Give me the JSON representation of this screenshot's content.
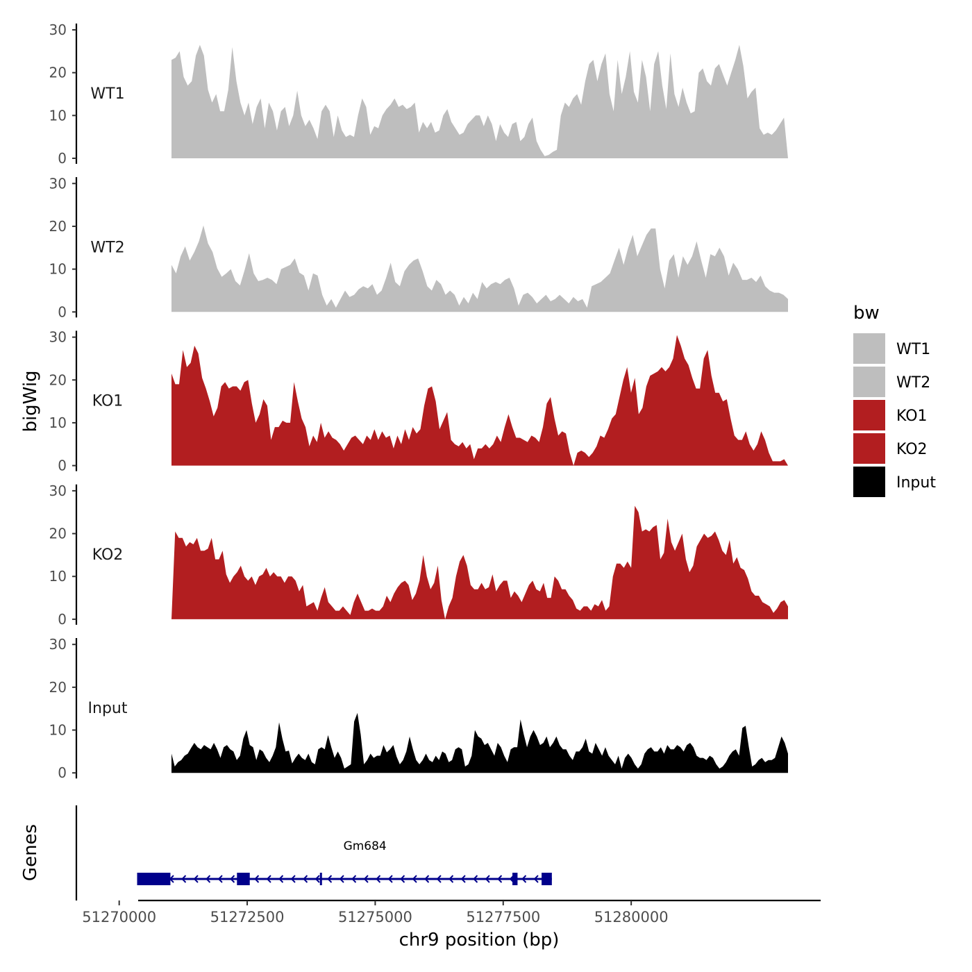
{
  "chart_data": {
    "type": "area",
    "ylabel": "bigWig",
    "gene_panel_label": "Genes",
    "xlabel": "chr9 position (bp)",
    "xlim": [
      51269150,
      51283700
    ],
    "ylim": [
      0,
      31
    ],
    "y_ticks": [
      0,
      10,
      20,
      30
    ],
    "x_ticks": [
      51270000,
      51272500,
      51275000,
      51277500,
      51280000
    ],
    "x_tick_labels": [
      "51270000",
      "51272500",
      "51275000",
      "51277500",
      "51280000"
    ],
    "legend": {
      "title": "bw",
      "position": "right",
      "entries": [
        {
          "name": "WT1",
          "color": "#bebebe"
        },
        {
          "name": "WT2",
          "color": "#bebebe"
        },
        {
          "name": "KO1",
          "color": "#b21e20"
        },
        {
          "name": "KO2",
          "color": "#b21e20"
        },
        {
          "name": "Input",
          "color": "#000000"
        }
      ]
    },
    "tracks": [
      {
        "name": "WT1",
        "color": "#bebebe",
        "values": [
          23,
          23.5,
          25,
          19,
          17,
          18,
          24,
          26.5,
          24,
          16,
          13,
          15,
          11,
          11,
          16,
          26,
          18,
          13,
          10,
          13,
          8,
          12,
          14,
          7,
          13,
          11,
          6.5,
          11,
          12,
          7.5,
          10,
          15.8,
          10,
          7.5,
          9,
          7,
          4.5,
          11,
          12.5,
          11,
          5,
          10,
          6.5,
          5,
          5.5,
          5,
          10,
          14,
          12,
          5.5,
          7.5,
          7,
          10,
          11.5,
          12.5,
          14,
          12,
          12.5,
          11.5,
          12,
          13,
          6,
          8.5,
          7,
          8.5,
          6,
          6.5,
          10,
          11.5,
          8.5,
          7,
          5.5,
          6,
          8,
          9,
          10,
          10,
          7.5,
          10,
          8,
          4,
          8,
          6,
          5,
          8,
          8.5,
          4,
          5,
          8,
          9.5,
          4,
          2,
          0.5,
          0.8,
          1.5,
          2,
          10,
          13,
          12,
          14,
          15,
          12.5,
          18,
          22,
          23,
          18,
          22,
          24.5,
          15,
          11,
          23,
          15,
          19,
          25,
          15.5,
          13,
          23,
          19,
          11,
          22,
          25,
          17,
          11.5,
          24.5,
          15,
          12,
          16.5,
          13,
          10.5,
          11,
          20,
          21,
          18,
          17,
          21,
          22,
          19.5,
          17,
          20,
          23,
          26.5,
          21.5,
          14,
          15.5,
          16.5,
          7,
          5.5,
          6,
          5.5,
          6.5,
          8,
          9.5,
          0
        ]
      },
      {
        "name": "WT2",
        "color": "#bebebe",
        "values": [
          11,
          9,
          13,
          15.3,
          12,
          14,
          16.5,
          20.2,
          16,
          14,
          10.2,
          8.2,
          9,
          10,
          7.2,
          6.2,
          9.7,
          13.7,
          9,
          7.2,
          7.5,
          8,
          7.5,
          6.5,
          10,
          10.5,
          11,
          12.5,
          9.2,
          8.5,
          5,
          9,
          8.5,
          4,
          1.5,
          3,
          1,
          3,
          5,
          3.5,
          4,
          5.3,
          6,
          5.5,
          6.5,
          4,
          5,
          8,
          11.5,
          7,
          6,
          9.5,
          11,
          12,
          12.5,
          9.5,
          6,
          5,
          7.5,
          6.5,
          4,
          5,
          4,
          1.5,
          3.5,
          2,
          4.5,
          3,
          7,
          5.5,
          6.5,
          7,
          6.5,
          7.5,
          8,
          5.5,
          1.5,
          4,
          4.5,
          3.5,
          2,
          3,
          4,
          2.5,
          3,
          4,
          3,
          2,
          3.5,
          2.5,
          3,
          1,
          6,
          6.5,
          7,
          8,
          9,
          12,
          15,
          11,
          15,
          18,
          13,
          15.5,
          18,
          19.5,
          19.5,
          10,
          5.5,
          12,
          13.5,
          8,
          13,
          11,
          13,
          16.5,
          12,
          8,
          13.5,
          13,
          15,
          13,
          8.5,
          11.5,
          10,
          7.5,
          7.5,
          8,
          7,
          8.5,
          6,
          5,
          4.5,
          4.5,
          4,
          3
        ]
      },
      {
        "name": "KO1",
        "color": "#b21e20",
        "values": [
          21.5,
          19,
          19,
          27,
          23,
          24,
          28,
          26.2,
          20.5,
          18,
          15,
          11.5,
          13.5,
          18.5,
          19.5,
          18,
          18.5,
          18.5,
          17.5,
          19.5,
          20,
          14.5,
          10,
          12,
          15.5,
          14,
          6,
          9,
          9,
          10.5,
          10,
          10,
          19.5,
          15,
          11,
          9,
          4.5,
          7,
          5.5,
          10,
          6.5,
          8,
          6.5,
          6,
          5,
          3.5,
          5,
          6.5,
          7,
          6,
          5,
          7,
          6,
          8.5,
          6,
          8,
          6.5,
          7,
          4,
          7,
          5,
          8.5,
          6,
          9,
          7.5,
          8.5,
          14,
          18,
          18.5,
          15,
          8.5,
          10.5,
          12.5,
          6,
          5,
          4.5,
          5.5,
          4,
          5,
          1.5,
          4,
          4,
          5,
          4,
          5,
          7,
          5.5,
          9,
          12,
          9,
          6.5,
          6.5,
          6,
          5.5,
          7,
          6.5,
          5.5,
          9,
          14.5,
          16,
          11,
          7,
          8,
          7.5,
          3,
          0,
          3,
          3.5,
          3,
          2,
          3,
          4.5,
          7,
          6.5,
          8.5,
          11,
          12,
          16,
          20,
          23,
          17,
          20.5,
          12,
          13.5,
          18.5,
          21,
          21.5,
          22,
          23,
          22,
          23,
          25,
          30.5,
          28,
          25,
          23.5,
          20.5,
          18,
          18,
          25,
          27,
          21,
          17,
          17,
          15,
          15.5,
          11,
          7,
          6,
          6,
          8,
          5,
          3.5,
          5,
          8,
          6,
          3,
          1,
          1,
          1,
          1.5,
          0
        ]
      },
      {
        "name": "KO2",
        "color": "#b21e20",
        "values": [
          0,
          20.5,
          19,
          19,
          17,
          18,
          17.5,
          19,
          16,
          16,
          16.5,
          19,
          14,
          14,
          16,
          10.5,
          8.5,
          10,
          11,
          12.5,
          10,
          9,
          10,
          8,
          10,
          10.5,
          12,
          10,
          11,
          10,
          10,
          8.5,
          10,
          10,
          9,
          6.5,
          8,
          3,
          3.5,
          4,
          2,
          5,
          7.5,
          4,
          3,
          2,
          2,
          3,
          2,
          1,
          4,
          6,
          4,
          2,
          2,
          2.5,
          2,
          2,
          3,
          5.5,
          4,
          6,
          7.5,
          8.5,
          9,
          8,
          4.5,
          6,
          9,
          15,
          10,
          7,
          8.5,
          12.5,
          4.5,
          0,
          3,
          5,
          10,
          13.5,
          15,
          12.5,
          8,
          7,
          7,
          8.5,
          7,
          7.5,
          10.5,
          6.5,
          8,
          9,
          9,
          5,
          6.5,
          5.5,
          4,
          6,
          8,
          9,
          7,
          6.5,
          8.5,
          5,
          5,
          10,
          9,
          7,
          7,
          5.5,
          4.5,
          2.5,
          2,
          3,
          3,
          2,
          3.5,
          3,
          4.5,
          2,
          3,
          10,
          13,
          13,
          12,
          13.5,
          12,
          26.5,
          25,
          20.5,
          21,
          20.5,
          21.5,
          22,
          14,
          15.5,
          23.5,
          18,
          16,
          18,
          20,
          14,
          11,
          12.5,
          17,
          18.5,
          20,
          19,
          19.5,
          20.5,
          18.5,
          16,
          15,
          18.5,
          13,
          14.5,
          12,
          11.5,
          9.5,
          6.5,
          5.5,
          5.5,
          4,
          3.5,
          3,
          1.5,
          2.5,
          4,
          4.5,
          3
        ]
      },
      {
        "name": "Input",
        "color": "#000000",
        "values": [
          4.5,
          1.5,
          2.5,
          3,
          4,
          4.5,
          5.8,
          7,
          6,
          5.5,
          6.5,
          6,
          5.5,
          7,
          5.5,
          3.5,
          6,
          6.5,
          5.5,
          5,
          3,
          4,
          8,
          10,
          6.5,
          6,
          3,
          5.5,
          5,
          3.5,
          2.5,
          4,
          6,
          11.8,
          8,
          5,
          5.2,
          2.2,
          3.5,
          4.5,
          3.5,
          3,
          4.5,
          2.5,
          2,
          5.5,
          6,
          5.5,
          8.8,
          6,
          3.5,
          5,
          3.5,
          1,
          1.5,
          2,
          12,
          14,
          9,
          2,
          3,
          4.5,
          3.5,
          4,
          4,
          6.5,
          4.8,
          5.5,
          6.5,
          3.8,
          2,
          3,
          5,
          8.5,
          5.5,
          3,
          2,
          3,
          4.5,
          3,
          2.5,
          4,
          3,
          5,
          4.5,
          2.5,
          3,
          5.5,
          6,
          5.5,
          1.5,
          2,
          4,
          10,
          8.5,
          8,
          6.5,
          7,
          5.5,
          4,
          7,
          6,
          4,
          2.5,
          5.5,
          6,
          6,
          12.5,
          9,
          6,
          8.5,
          10,
          8.5,
          6.5,
          7,
          8.5,
          6,
          7,
          8.5,
          6.5,
          5.5,
          5.5,
          4,
          3,
          5,
          5,
          6,
          8,
          5,
          4.5,
          7,
          5.5,
          4,
          6,
          4,
          3,
          2,
          4,
          1,
          3.5,
          4.5,
          3.5,
          2,
          1,
          2,
          4.5,
          5.5,
          6,
          5,
          5,
          6,
          4.5,
          6.5,
          5.5,
          5.5,
          6.5,
          6,
          5,
          6.5,
          7,
          6,
          4,
          3.5,
          3.5,
          3,
          4,
          3.5,
          2,
          1,
          1.5,
          2.5,
          4,
          5,
          5.5,
          4,
          10.5,
          11,
          6,
          1.5,
          2,
          3,
          3.5,
          2.5,
          3,
          3,
          3.5,
          6,
          8.5,
          7,
          4.5
        ]
      }
    ],
    "gene": {
      "name": "Gm684",
      "start": 51270350,
      "end": 51278450,
      "strand": "-",
      "exons": [
        [
          51270350,
          51271000
        ],
        [
          51272300,
          51272550
        ],
        [
          51273920,
          51273960
        ],
        [
          51277680,
          51277780
        ],
        [
          51278250,
          51278450
        ]
      ]
    }
  }
}
